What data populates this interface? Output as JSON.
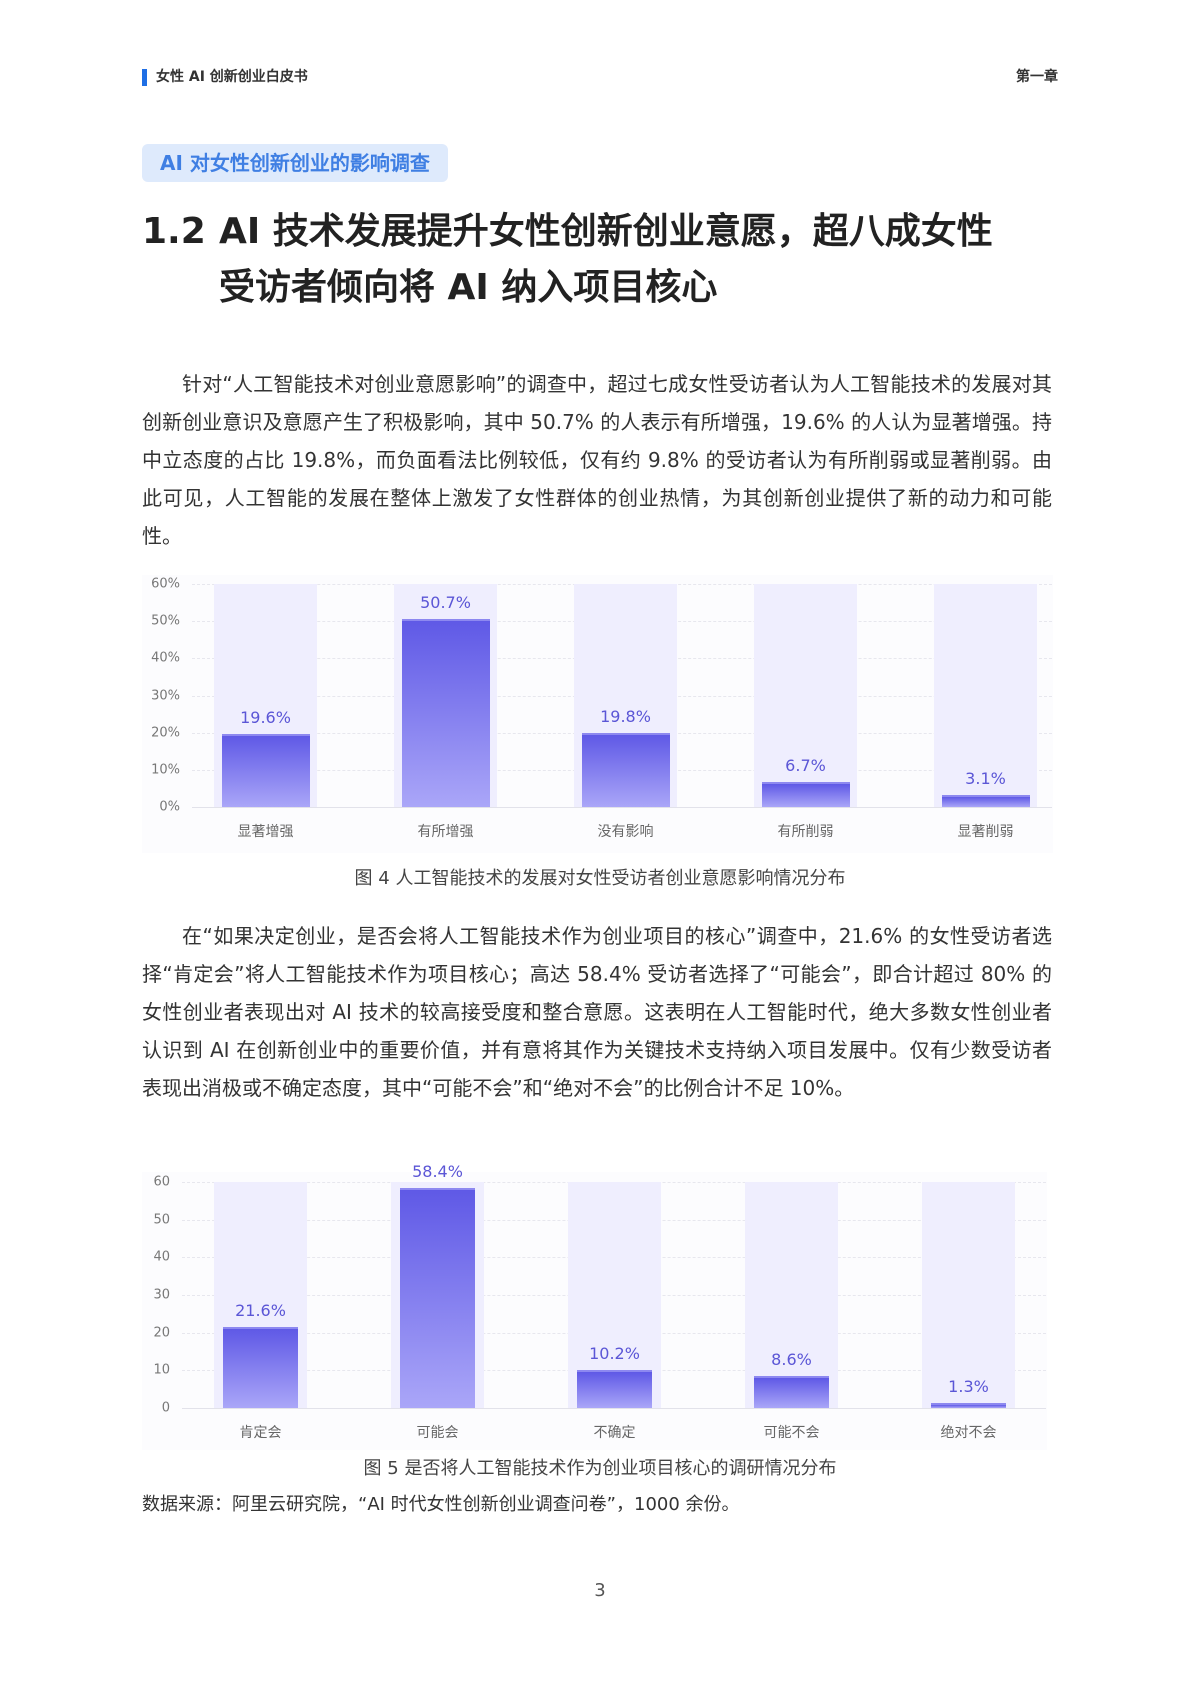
{
  "header": {
    "doc_title": "女性 AI 创新创业白皮书",
    "chapter": "第一章",
    "accent": "#1f6fe5"
  },
  "section_pill": "AI 对女性创新创业的影响调查",
  "heading": {
    "number": "1.2",
    "line1": "AI 技术发展提升女性创新创业意愿，超八成女性",
    "line2": "受访者倾向将 AI 纳入项目核心"
  },
  "paragraphs": [
    "针对“人工智能技术对创业意愿影响”的调查中，超过七成女性受访者认为人工智能技术的发展对其创新创业意识及意愿产生了积极影响，其中 50.7% 的人表示有所增强，19.6% 的人认为显著增强。持中立态度的占比 19.8%，而负面看法比例较低，仅有约 9.8% 的受访者认为有所削弱或显著削弱。由此可见，人工智能的发展在整体上激发了女性群体的创业热情，为其创新创业提供了新的动力和可能性。",
    "在“如果决定创业，是否会将人工智能技术作为创业项目的核心”调查中，21.6% 的女性受访者选择“肯定会”将人工智能技术作为项目核心；高达 58.4% 受访者选择了“可能会”，即合计超过 80% 的女性创业者表现出对 AI 技术的较高接受度和整合意愿。这表明在人工智能时代，绝大多数女性创业者认识到 AI 在创新创业中的重要价值，并有意将其作为关键技术支持纳入项目发展中。仅有少数受访者表现出消极或不确定态度，其中“可能不会”和“绝对不会”的比例合计不足 10%。"
  ],
  "figures": [
    {
      "caption": "图 4  人工智能技术的发展对女性受访者创业意愿影响情况分布"
    },
    {
      "caption": "图 5 是否将人工智能技术作为创业项目核心的调研情况分布"
    }
  ],
  "source_note": "数据来源：阿里云研究院，“AI 时代女性创新创业调查问卷”，1000 余份。",
  "page_number": "3",
  "chart_data": [
    {
      "type": "bar",
      "title": "图 4  人工智能技术的发展对女性受访者创业意愿影响情况分布",
      "categories": [
        "显著增强",
        "有所增强",
        "没有影响",
        "有所削弱",
        "显著削弱"
      ],
      "values": [
        19.6,
        50.7,
        19.8,
        6.7,
        3.1
      ],
      "value_labels": [
        "19.6%",
        "50.7%",
        "19.8%",
        "6.7%",
        "3.1%"
      ],
      "yticks": [
        "0%",
        "10%",
        "20%",
        "30%",
        "40%",
        "50%",
        "60%"
      ],
      "ylim": [
        0,
        60
      ],
      "xlabel": "",
      "ylabel": "",
      "grid": true,
      "bar_color_top": "#5f59e6",
      "bar_color_bottom": "#aaa6f8",
      "column_bg": "#efeefe"
    },
    {
      "type": "bar",
      "title": "图 5 是否将人工智能技术作为创业项目核心的调研情况分布",
      "categories": [
        "肯定会",
        "可能会",
        "不确定",
        "可能不会",
        "绝对不会"
      ],
      "values": [
        21.6,
        58.4,
        10.2,
        8.6,
        1.3
      ],
      "value_labels": [
        "21.6%",
        "58.4%",
        "10.2%",
        "8.6%",
        "1.3%"
      ],
      "yticks": [
        "0",
        "10",
        "20",
        "30",
        "40",
        "50",
        "60"
      ],
      "ylim": [
        0,
        60
      ],
      "xlabel": "",
      "ylabel": "",
      "grid": true,
      "bar_color_top": "#5f59e6",
      "bar_color_bottom": "#aaa6f8",
      "column_bg": "#efeefe"
    }
  ]
}
